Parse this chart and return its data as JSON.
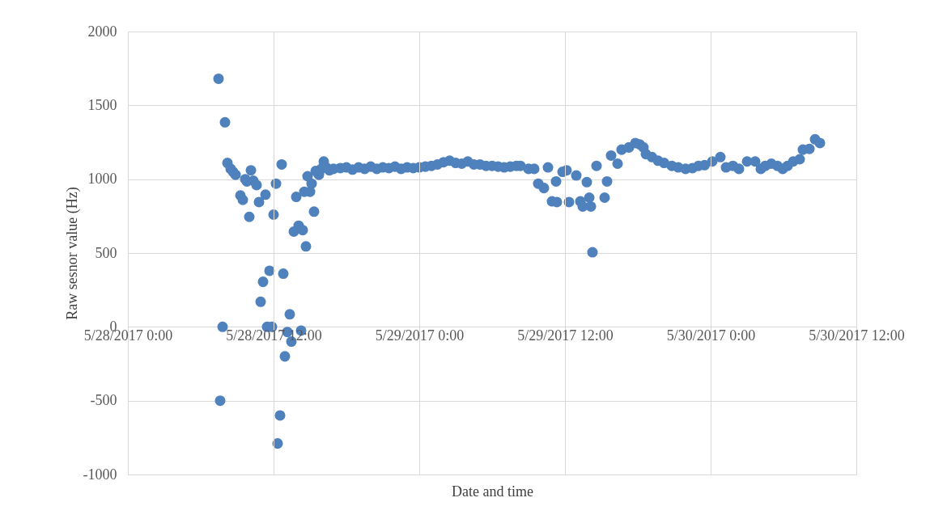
{
  "chart_data": {
    "type": "scatter",
    "ylabel": "Raw sesnor value (Hz)",
    "xlabel": "Date and time",
    "marker": "circle",
    "grid": true,
    "legend": false,
    "xlim": [
      "2017-05-28T00:00",
      "2017-05-30T12:00"
    ],
    "xticks": [
      {
        "value": "2017-05-28T00:00",
        "label": "5/28/2017 0:00"
      },
      {
        "value": "2017-05-28T12:00",
        "label": "5/28/2017 12:00"
      },
      {
        "value": "2017-05-29T00:00",
        "label": "5/29/2017 0:00"
      },
      {
        "value": "2017-05-29T12:00",
        "label": "5/29/2017 12:00"
      },
      {
        "value": "2017-05-30T00:00",
        "label": "5/30/2017 0:00"
      },
      {
        "value": "2017-05-30T12:00",
        "label": "5/30/2017 12:00"
      }
    ],
    "ylim": [
      -1000,
      2000
    ],
    "yticks": [
      -1000,
      -500,
      0,
      500,
      1000,
      1500,
      2000
    ],
    "x": [
      "2017-05-28T07:28",
      "2017-05-28T07:36",
      "2017-05-28T07:48",
      "2017-05-28T08:00",
      "2017-05-28T08:12",
      "2017-05-28T08:28",
      "2017-05-28T08:40",
      "2017-05-28T08:52",
      "2017-05-28T09:16",
      "2017-05-28T09:28",
      "2017-05-28T09:40",
      "2017-05-28T09:48",
      "2017-05-28T10:00",
      "2017-05-28T10:08",
      "2017-05-28T10:20",
      "2017-05-28T10:36",
      "2017-05-28T10:48",
      "2017-05-28T10:56",
      "2017-05-28T11:08",
      "2017-05-28T11:20",
      "2017-05-28T11:28",
      "2017-05-28T11:40",
      "2017-05-28T11:52",
      "2017-05-28T12:00",
      "2017-05-28T12:12",
      "2017-05-28T12:20",
      "2017-05-28T12:32",
      "2017-05-28T12:40",
      "2017-05-28T12:48",
      "2017-05-28T12:56",
      "2017-05-28T13:08",
      "2017-05-28T13:20",
      "2017-05-28T13:28",
      "2017-05-28T13:40",
      "2017-05-28T13:52",
      "2017-05-28T14:04",
      "2017-05-28T14:16",
      "2017-05-28T14:24",
      "2017-05-28T14:32",
      "2017-05-28T14:40",
      "2017-05-28T14:48",
      "2017-05-28T15:00",
      "2017-05-28T15:08",
      "2017-05-28T15:20",
      "2017-05-28T15:28",
      "2017-05-28T15:44",
      "2017-05-28T15:56",
      "2017-05-28T16:08",
      "2017-05-28T16:20",
      "2017-05-28T16:36",
      "2017-05-28T16:56",
      "2017-05-28T17:30",
      "2017-05-28T18:00",
      "2017-05-28T18:30",
      "2017-05-28T19:00",
      "2017-05-28T19:30",
      "2017-05-28T20:00",
      "2017-05-28T20:30",
      "2017-05-28T21:00",
      "2017-05-28T21:30",
      "2017-05-28T22:00",
      "2017-05-28T22:30",
      "2017-05-28T23:00",
      "2017-05-28T23:30",
      "2017-05-29T00:00",
      "2017-05-29T00:30",
      "2017-05-29T01:00",
      "2017-05-29T01:30",
      "2017-05-29T02:00",
      "2017-05-29T02:30",
      "2017-05-29T03:00",
      "2017-05-29T03:30",
      "2017-05-29T04:00",
      "2017-05-29T04:30",
      "2017-05-29T05:00",
      "2017-05-29T05:30",
      "2017-05-29T06:00",
      "2017-05-29T06:30",
      "2017-05-29T07:00",
      "2017-05-29T07:30",
      "2017-05-29T08:00",
      "2017-05-29T08:20",
      "2017-05-29T09:00",
      "2017-05-29T09:28",
      "2017-05-29T09:48",
      "2017-05-29T10:16",
      "2017-05-29T10:36",
      "2017-05-29T10:56",
      "2017-05-29T11:16",
      "2017-05-29T11:20",
      "2017-05-29T11:48",
      "2017-05-29T12:08",
      "2017-05-29T12:20",
      "2017-05-29T12:56",
      "2017-05-29T13:16",
      "2017-05-29T13:28",
      "2017-05-29T13:48",
      "2017-05-29T14:00",
      "2017-05-29T14:08",
      "2017-05-29T14:16",
      "2017-05-29T14:36",
      "2017-05-29T15:16",
      "2017-05-29T15:28",
      "2017-05-29T15:48",
      "2017-05-29T16:20",
      "2017-05-29T16:40",
      "2017-05-29T17:16",
      "2017-05-29T17:48",
      "2017-05-29T18:10",
      "2017-05-29T18:28",
      "2017-05-29T18:40",
      "2017-05-29T19:10",
      "2017-05-29T19:40",
      "2017-05-29T20:10",
      "2017-05-29T20:48",
      "2017-05-29T21:20",
      "2017-05-29T21:56",
      "2017-05-29T22:30",
      "2017-05-29T23:00",
      "2017-05-29T23:30",
      "2017-05-30T00:08",
      "2017-05-30T00:48",
      "2017-05-30T01:16",
      "2017-05-30T01:50",
      "2017-05-30T02:20",
      "2017-05-30T03:00",
      "2017-05-30T03:40",
      "2017-05-30T04:08",
      "2017-05-30T04:30",
      "2017-05-30T05:00",
      "2017-05-30T05:30",
      "2017-05-30T05:56",
      "2017-05-30T06:20",
      "2017-05-30T06:48",
      "2017-05-30T07:20",
      "2017-05-30T07:36",
      "2017-05-30T08:08",
      "2017-05-30T08:36",
      "2017-05-30T09:00"
    ],
    "series": [
      {
        "color": "#4f81bd",
        "values": [
          1680,
          -500,
          0,
          1385,
          1110,
          1070,
          1050,
          1030,
          890,
          860,
          1000,
          985,
          745,
          1060,
          990,
          960,
          845,
          170,
          305,
          895,
          0,
          380,
          0,
          760,
          970,
          -790,
          -600,
          1100,
          360,
          -200,
          -35,
          85,
          -100,
          645,
          880,
          685,
          -25,
          655,
          915,
          545,
          1020,
          915,
          970,
          780,
          1055,
          1030,
          1070,
          1120,
          1080,
          1060,
          1070,
          1075,
          1080,
          1065,
          1080,
          1070,
          1085,
          1070,
          1080,
          1075,
          1085,
          1070,
          1080,
          1075,
          1080,
          1085,
          1090,
          1100,
          1115,
          1125,
          1110,
          1105,
          1120,
          1100,
          1100,
          1090,
          1090,
          1085,
          1080,
          1085,
          1090,
          1090,
          1070,
          1070,
          970,
          940,
          1080,
          850,
          985,
          845,
          1050,
          1060,
          845,
          1025,
          850,
          815,
          980,
          875,
          815,
          505,
          1090,
          875,
          985,
          1160,
          1105,
          1200,
          1215,
          1245,
          1235,
          1215,
          1170,
          1150,
          1125,
          1110,
          1090,
          1080,
          1070,
          1075,
          1090,
          1095,
          1120,
          1150,
          1080,
          1090,
          1070,
          1120,
          1120,
          1070,
          1090,
          1105,
          1090,
          1070,
          1090,
          1120,
          1135,
          1200,
          1205,
          1270,
          1245
        ]
      }
    ]
  }
}
